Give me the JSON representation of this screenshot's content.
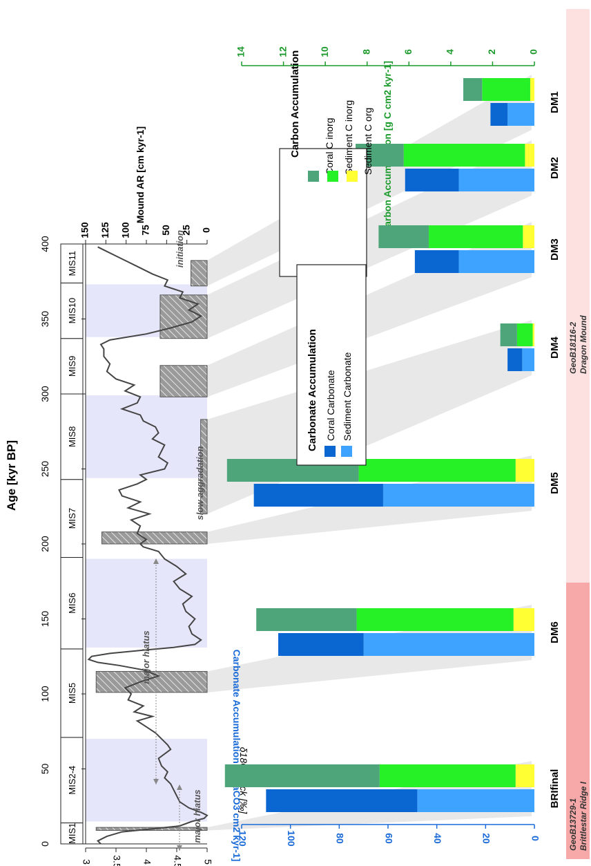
{
  "axes": {
    "age_title": "Age [kyr BP]",
    "age_ticks": [
      "0",
      "50",
      "100",
      "150",
      "200",
      "250",
      "300",
      "350",
      "400"
    ],
    "d18o_title": "δ18O stack [‰]",
    "d18o_ticks": [
      "3",
      "3.5",
      "4",
      "4.5",
      "5"
    ],
    "mound_ar_title": "Mound AR [cm kyr-1]",
    "mound_ar_ticks": [
      "150",
      "125",
      "100",
      "75",
      "50",
      "25",
      "0"
    ],
    "carbon_title": "Carbon Accumulation [g C cm2 kyr-1]",
    "carbon_ticks": [
      "14",
      "12",
      "10",
      "8",
      "6",
      "4",
      "2",
      "0"
    ],
    "carbonate_title": "Carbonate Accumulation [g CaCO3 cm2 kyr-1]",
    "carbonate_ticks": [
      "120",
      "100",
      "80",
      "60",
      "40",
      "20",
      "0"
    ]
  },
  "colors": {
    "coral_carbonate": "#0a66d0",
    "sediment_carbonate": "#3ea2ff",
    "coral_c_inorg": "#4ea57a",
    "sediment_c_inorg": "#26f026",
    "sediment_c_org": "#ffff33",
    "mis_shade": "#e6e6fa",
    "carbon_axis": "#1a9a2a",
    "carbonate_axis": "#1a6ad8",
    "hatch": "#9a9a9a",
    "curve": "#444444",
    "core_bri": "#f7a9a9",
    "core_dragon": "#fde1e1"
  },
  "mis_stages": [
    "MIS1",
    "MIS2-4",
    "MIS5",
    "MIS6",
    "MIS7",
    "MIS8",
    "MIS9",
    "MIS10",
    "MIS11"
  ],
  "annotations": {
    "major_hiatus_1": "major hiatus",
    "major_hiatus_2": "major hiatus",
    "slow_aggradation": "slow aggradation",
    "initiation": "initiation"
  },
  "legends": {
    "carbon": {
      "title": "Carbon Accumulation",
      "items": [
        "Coral C inorg",
        "Sediment C inorg",
        "Sediment C org"
      ]
    },
    "carbonate": {
      "title": "Carbonate Accumulation",
      "items": [
        "Coral Carbonate",
        "Sediment Carbonate"
      ]
    }
  },
  "cores": {
    "bri_name": "GeoB13729-1",
    "bri_site": "Brittlestar Ridge I",
    "dm_name": "GeoB18116-2",
    "dm_site": "Dragon Mound"
  },
  "chart_data": [
    {
      "type": "line",
      "name": "δ18O stack",
      "xlabel": "Age [kyr BP]",
      "ylabel": "δ18O stack [‰]",
      "xlim": [
        0,
        400
      ],
      "ylim": [
        3,
        5
      ],
      "y_inverted": true,
      "x": [
        0,
        2,
        5,
        8,
        10,
        12,
        15,
        17,
        19,
        21,
        24,
        28,
        32,
        36,
        40,
        44,
        48,
        52,
        57,
        60,
        63,
        66,
        70,
        74,
        78,
        82,
        85,
        88,
        92,
        96,
        100,
        104,
        108,
        112,
        116,
        119,
        121,
        123,
        125,
        127,
        129,
        131,
        133,
        136,
        140,
        145,
        150,
        155,
        160,
        165,
        170,
        175,
        180,
        185,
        190,
        195,
        198,
        200,
        203,
        207,
        212,
        216,
        220,
        224,
        228,
        232,
        236,
        240,
        243,
        246,
        250,
        254,
        258,
        262,
        266,
        270,
        274,
        278,
        282,
        286,
        290,
        294,
        298,
        302,
        306,
        310,
        315,
        320,
        325,
        330,
        333,
        336,
        340,
        344,
        348,
        352,
        356,
        360,
        364,
        368,
        372,
        376,
        380,
        384,
        388,
        392,
        396,
        398
      ],
      "y": [
        3.25,
        3.2,
        3.35,
        3.6,
        4.1,
        4.55,
        4.75,
        4.95,
        5.0,
        4.9,
        4.7,
        4.55,
        4.5,
        4.45,
        4.4,
        4.3,
        4.35,
        4.25,
        4.2,
        4.3,
        4.4,
        4.35,
        4.25,
        4.15,
        4.0,
        3.85,
        4.1,
        3.8,
        3.95,
        3.7,
        3.75,
        3.65,
        3.9,
        4.2,
        3.95,
        3.55,
        3.2,
        3.05,
        3.1,
        3.4,
        3.9,
        4.45,
        4.8,
        4.9,
        4.75,
        4.7,
        4.8,
        4.65,
        4.6,
        4.75,
        4.55,
        4.45,
        4.65,
        4.5,
        4.3,
        4.2,
        3.95,
        3.9,
        4.0,
        3.85,
        3.9,
        3.75,
        4.05,
        3.7,
        3.9,
        3.6,
        3.55,
        3.85,
        4.0,
        3.9,
        4.3,
        4.35,
        4.2,
        4.25,
        4.3,
        4.1,
        4.2,
        4.15,
        3.95,
        3.9,
        3.6,
        3.85,
        3.9,
        3.65,
        3.8,
        3.5,
        3.35,
        3.4,
        3.3,
        3.3,
        3.25,
        3.4,
        4.0,
        4.4,
        4.75,
        4.9,
        4.7,
        4.85,
        4.55,
        4.6,
        4.3,
        4.35,
        4.1,
        3.9,
        3.7,
        3.5,
        3.3,
        3.2
      ]
    },
    {
      "type": "bar",
      "name": "Mound AR",
      "ylabel": "Mound AR [cm kyr-1]",
      "ylim": [
        0,
        150
      ],
      "intervals_kyr": [
        [
          9,
          11
        ],
        [
          101,
          115
        ],
        [
          200,
          208
        ],
        [
          220,
          283
        ],
        [
          298,
          319
        ],
        [
          337,
          366
        ],
        [
          372,
          389
        ]
      ],
      "values": [
        137,
        137,
        130,
        8,
        58,
        58,
        20
      ]
    },
    {
      "type": "bar",
      "name": "Carbonate Accumulation",
      "ylabel": "Carbonate Accumulation [g CaCO3 cm2 kyr-1]",
      "ylim": [
        0,
        120
      ],
      "categories": [
        "BRIfinal",
        "DM6",
        "DM5",
        "DM4",
        "DM3",
        "DM2",
        "DM1"
      ],
      "series": [
        {
          "name": "Sediment Carbonate",
          "values": [
            48,
            70,
            62,
            5,
            31,
            31,
            11
          ]
        },
        {
          "name": "Coral Carbonate",
          "values": [
            62,
            35,
            53,
            6,
            18,
            22,
            7
          ]
        }
      ]
    },
    {
      "type": "bar",
      "name": "Carbon Accumulation",
      "ylabel": "Carbon Accumulation [g C cm2 kyr-1]",
      "ylim": [
        0,
        14
      ],
      "categories": [
        "BRIfinal",
        "DM6",
        "DM5",
        "DM4",
        "DM3",
        "DM2",
        "DM1"
      ],
      "series": [
        {
          "name": "Sediment C org",
          "values": [
            0.9,
            1.0,
            0.9,
            0.08,
            0.55,
            0.45,
            0.2
          ]
        },
        {
          "name": "Sediment C inorg",
          "values": [
            6.5,
            7.5,
            7.5,
            0.75,
            4.5,
            5.8,
            2.3
          ]
        },
        {
          "name": "Coral C inorg",
          "values": [
            7.4,
            4.8,
            6.3,
            0.8,
            2.4,
            2.3,
            0.9
          ]
        }
      ]
    }
  ]
}
